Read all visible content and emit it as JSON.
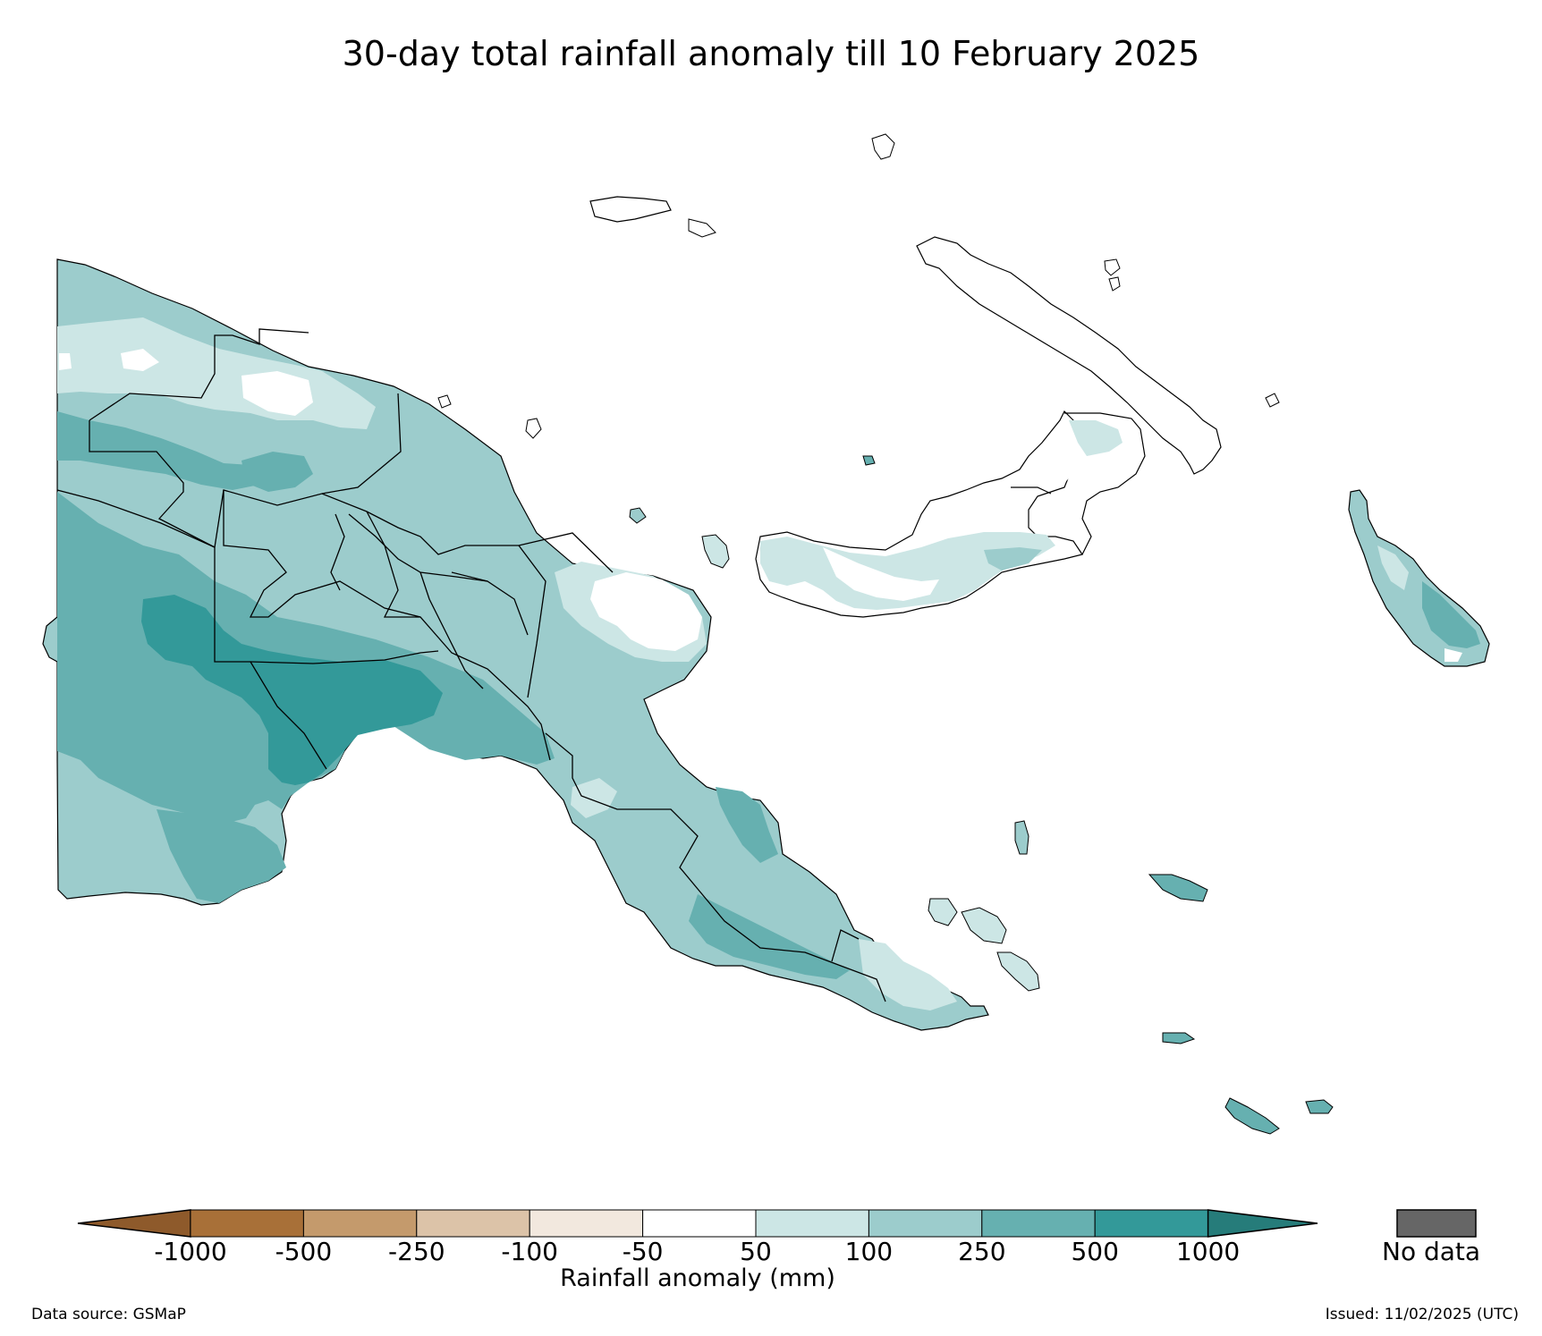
{
  "title": "30-day total rainfall anomaly till 10 February 2025",
  "colorbar": {
    "label": "Rainfall anomaly (mm)",
    "ticks": [
      "-1000",
      "-500",
      "-250",
      "-100",
      "-50",
      "50",
      "100",
      "250",
      "500",
      "1000"
    ],
    "colors": [
      "#8e5a2b",
      "#a87038",
      "#c49a6c",
      "#dcc3a8",
      "#f2e8de",
      "#ffffff",
      "#cce6e5",
      "#9ccccc",
      "#66b0b0",
      "#339999",
      "#267c7a"
    ],
    "under_color": "#8e5a2b",
    "over_color": "#267c7a"
  },
  "nodata": {
    "label": "No data",
    "color": "#666666"
  },
  "footer": {
    "source": "Data source: GSMaP",
    "issued": "Issued: 11/02/2025 (UTC)"
  }
}
